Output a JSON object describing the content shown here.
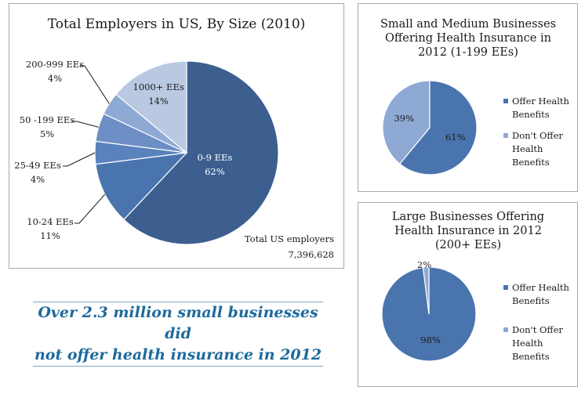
{
  "colors": {
    "dark_blue": "#3c5f8f",
    "mid_blue": "#4a74ad",
    "medium_blue": "#6d8fc5",
    "light_blue": "#8ea9d3",
    "pale_blue": "#b9c9e1",
    "callout_text": "#1d6a9c"
  },
  "callout": {
    "text": "Over 2.3 million small businesses did\nnot offer health insurance in 2012"
  },
  "chart_data": [
    {
      "type": "pie",
      "title": "Total Employers in US, By Size (2010)",
      "slices": [
        {
          "name": "0-9 EEs",
          "pct_label": "62%",
          "value": 62,
          "color": "#3c5f8f"
        },
        {
          "name": "10-24 EEs",
          "pct_label": "11%",
          "value": 11,
          "color": "#4a74ad"
        },
        {
          "name": "25-49 EEs",
          "pct_label": "4%",
          "value": 4,
          "color": "#5a82bd"
        },
        {
          "name": "50 -199 EEs",
          "pct_label": "5%",
          "value": 5,
          "color": "#6d8fc5"
        },
        {
          "name": "200-999 EEs",
          "pct_label": "4%",
          "value": 4,
          "color": "#8ea9d3"
        },
        {
          "name": "1000+ EEs",
          "pct_label": "14%",
          "value": 14,
          "color": "#b9c9e1"
        }
      ],
      "annotation": {
        "line1": "Total US employers",
        "line2": "7,396,628"
      }
    },
    {
      "type": "pie",
      "title": [
        "Small and Medium Businesses",
        "Offering Health Insurance in",
        "2012 (1-199 EEs)"
      ],
      "slices": [
        {
          "name": "Offer Health Benefits",
          "legend": [
            "Offer Health",
            "Benefits"
          ],
          "pct_label": "61%",
          "value": 61,
          "color": "#4a74ad"
        },
        {
          "name": "Don't Offer Health Benefits",
          "legend": [
            "Don't Offer",
            "Health",
            "Benefits"
          ],
          "pct_label": "39%",
          "value": 39,
          "color": "#8ea9d3"
        }
      ],
      "legend_position": "right"
    },
    {
      "type": "pie",
      "title": [
        "Large Businesses Offering",
        "Health Insurance in 2012",
        "(200+ EEs)"
      ],
      "slices": [
        {
          "name": "Offer Health Benefits",
          "legend": [
            "Offer Health",
            "Benefits"
          ],
          "pct_label": "98%",
          "value": 98,
          "color": "#4a74ad"
        },
        {
          "name": "Don't Offer Health Benefits",
          "legend": [
            "Don't Offer",
            "Health",
            "Benefits"
          ],
          "pct_label": "2%",
          "value": 2,
          "color": "#8ea9d3"
        }
      ],
      "legend_position": "right"
    }
  ]
}
